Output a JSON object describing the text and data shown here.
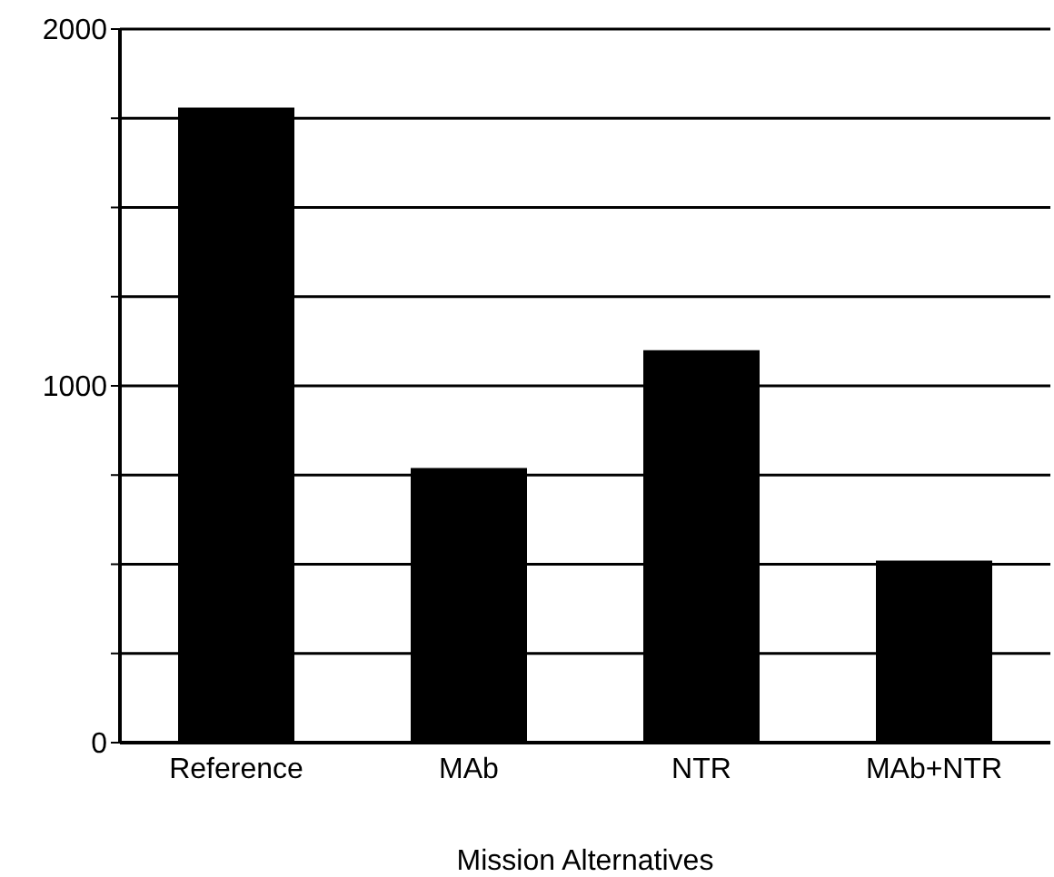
{
  "chart_data": {
    "type": "bar",
    "xlabel": "Mission Alternatives",
    "categories": [
      "Reference",
      "MAb",
      "NTR",
      "MAb+NTR"
    ],
    "values": [
      1780,
      770,
      1100,
      510
    ],
    "color": "#000000",
    "ylim": [
      0,
      2000
    ],
    "yticks": [
      0,
      {
        "value": 250,
        "label": null
      },
      {
        "value": 500,
        "label": null
      },
      {
        "value": 750,
        "label": null
      },
      1000,
      {
        "value": 1250,
        "label": null
      },
      {
        "value": 1500,
        "label": null
      },
      {
        "value": 1750,
        "label": null
      },
      2000
    ],
    "grid": "y"
  }
}
